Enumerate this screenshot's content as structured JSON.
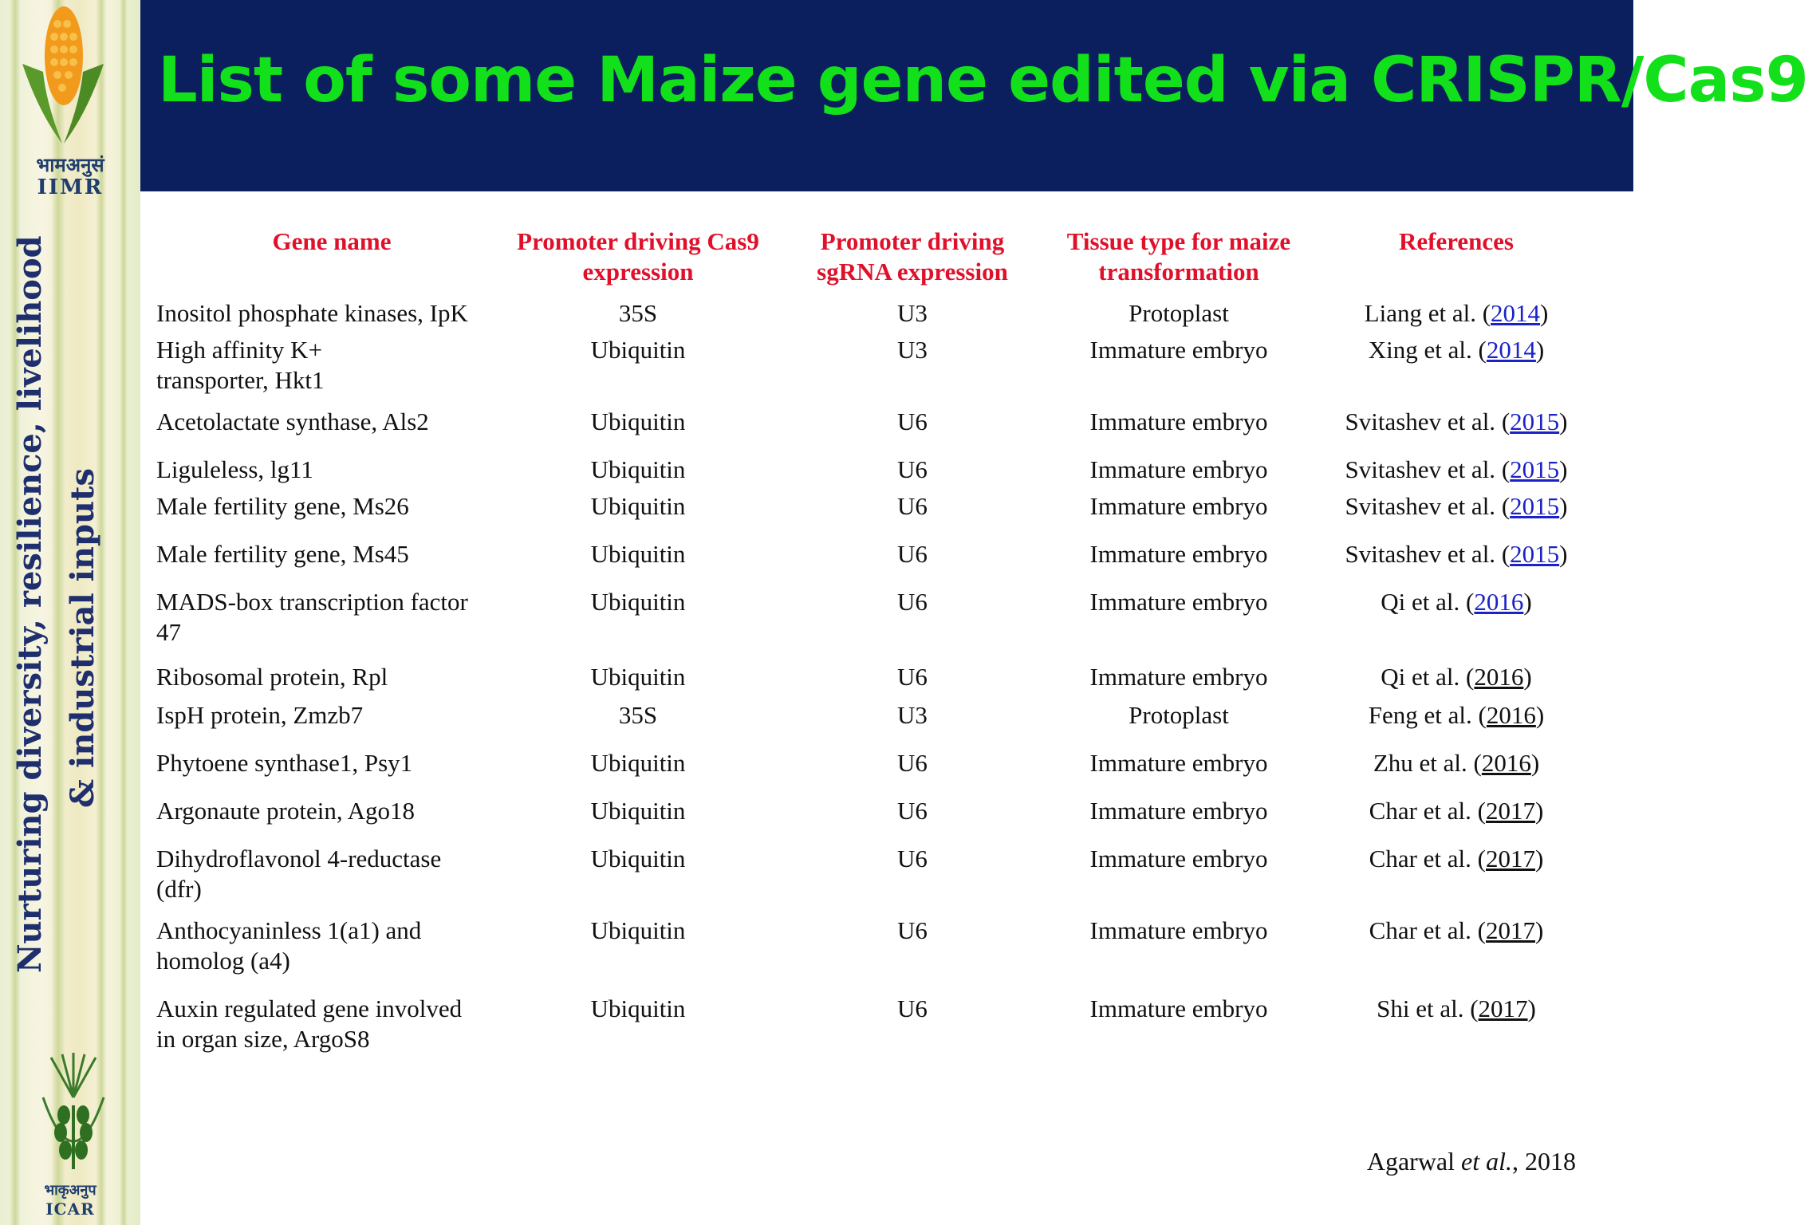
{
  "slide_title": "List of some Maize gene edited via CRISPR/Cas9",
  "sidebar": {
    "logo_top_hindi": "भामअनुसं",
    "logo_top_name": "IIMR",
    "tagline_line1": "Nurturing diversity, resilience, livelihood",
    "tagline_line2": "& industrial inputs",
    "logo_bottom_hindi": "भाकृअनुप",
    "logo_bottom_name": "ICAR"
  },
  "table": {
    "headers": {
      "gene": "Gene name",
      "cas9_line1": "Promoter driving Cas9",
      "cas9_line2": "expression",
      "sgrna_line1": "Promoter driving",
      "sgrna_line2": "sgRNA expression",
      "tissue_line1": "Tissue type for maize",
      "tissue_line2": "transformation",
      "ref": "References"
    },
    "rows": [
      {
        "gene_line1": "Inositol phosphate kinases, IpK",
        "gene_line2": "",
        "cas9": "35S",
        "sgrna": "U3",
        "tissue": "Protoplast",
        "ref_author": "Liang et al.",
        "ref_year": "2014",
        "ref_linked": true
      },
      {
        "gene_line1": "High affinity K+",
        "gene_line2": "transporter, Hkt1",
        "cas9": "Ubiquitin",
        "sgrna": "U3",
        "tissue": "Immature embryo",
        "ref_author": "Xing et al.",
        "ref_year": "2014",
        "ref_linked": true
      },
      {
        "gene_line1": "Acetolactate synthase, Als2",
        "gene_line2": "",
        "cas9": "Ubiquitin",
        "sgrna": "U6",
        "tissue": "Immature embryo",
        "ref_author": "Svitashev et al.",
        "ref_year": "2015",
        "ref_linked": true
      },
      {
        "gene_line1": "Liguleless, lg11",
        "gene_line2": "",
        "cas9": "Ubiquitin",
        "sgrna": "U6",
        "tissue": "Immature embryo",
        "ref_author": "Svitashev et al.",
        "ref_year": "2015",
        "ref_linked": true
      },
      {
        "gene_line1": "Male fertility gene, Ms26",
        "gene_line2": "",
        "cas9": "Ubiquitin",
        "sgrna": "U6",
        "tissue": "Immature embryo",
        "ref_author": "Svitashev et al.",
        "ref_year": "2015",
        "ref_linked": true
      },
      {
        "gene_line1": "Male fertility gene, Ms45",
        "gene_line2": "",
        "cas9": "Ubiquitin",
        "sgrna": "U6",
        "tissue": "Immature embryo",
        "ref_author": "Svitashev et al.",
        "ref_year": "2015",
        "ref_linked": true
      },
      {
        "gene_line1": "MADS-box transcription factor",
        "gene_line2": "47",
        "cas9": "Ubiquitin",
        "sgrna": "U6",
        "tissue": "Immature embryo",
        "ref_author": "Qi et al.",
        "ref_year": "2016",
        "ref_linked": true
      },
      {
        "gene_line1": "Ribosomal protein, Rpl",
        "gene_line2": "",
        "cas9": "Ubiquitin",
        "sgrna": "U6",
        "tissue": "Immature embryo",
        "ref_author": "Qi et al.",
        "ref_year": "2016",
        "ref_linked": false
      },
      {
        "gene_line1": "IspH protein, Zmzb7",
        "gene_line2": "",
        "cas9": "35S",
        "sgrna": "U3",
        "tissue": "Protoplast",
        "ref_author": "Feng et al.",
        "ref_year": "2016",
        "ref_linked": false
      },
      {
        "gene_line1": "Phytoene synthase1, Psy1",
        "gene_line2": "",
        "cas9": "Ubiquitin",
        "sgrna": "U6",
        "tissue": "Immature embryo",
        "ref_author": "Zhu et al.",
        "ref_year": "2016",
        "ref_linked": false
      },
      {
        "gene_line1": "Argonaute protein, Ago18",
        "gene_line2": "",
        "cas9": "Ubiquitin",
        "sgrna": "U6",
        "tissue": "Immature embryo",
        "ref_author": "Char et al.",
        "ref_year": "2017",
        "ref_linked": false
      },
      {
        "gene_line1": "Dihydroflavonol 4-reductase",
        "gene_line2": "(dfr)",
        "cas9": "Ubiquitin",
        "sgrna": "U6",
        "tissue": "Immature embryo",
        "ref_author": "Char et al.",
        "ref_year": "2017",
        "ref_linked": false
      },
      {
        "gene_line1": "Anthocyaninless 1(a1) and",
        "gene_line2": "homolog (a4)",
        "cas9": "Ubiquitin",
        "sgrna": "U6",
        "tissue": "Immature embryo",
        "ref_author": "Char et al.",
        "ref_year": "2017",
        "ref_linked": false
      },
      {
        "gene_line1": "Auxin regulated gene involved",
        "gene_line2": "in organ size, ArgoS8",
        "cas9": "Ubiquitin",
        "sgrna": "U6",
        "tissue": "Immature embryo",
        "ref_author": "Shi et al.",
        "ref_year": "2017",
        "ref_linked": false
      }
    ]
  },
  "citation": {
    "author": "Agarwal",
    "etal": "et al.",
    "suffix": ", 2018"
  },
  "colors": {
    "banner": "#0b1f5e",
    "title": "#12e01a",
    "header": "#e0102a",
    "link": "#1a22c8"
  }
}
